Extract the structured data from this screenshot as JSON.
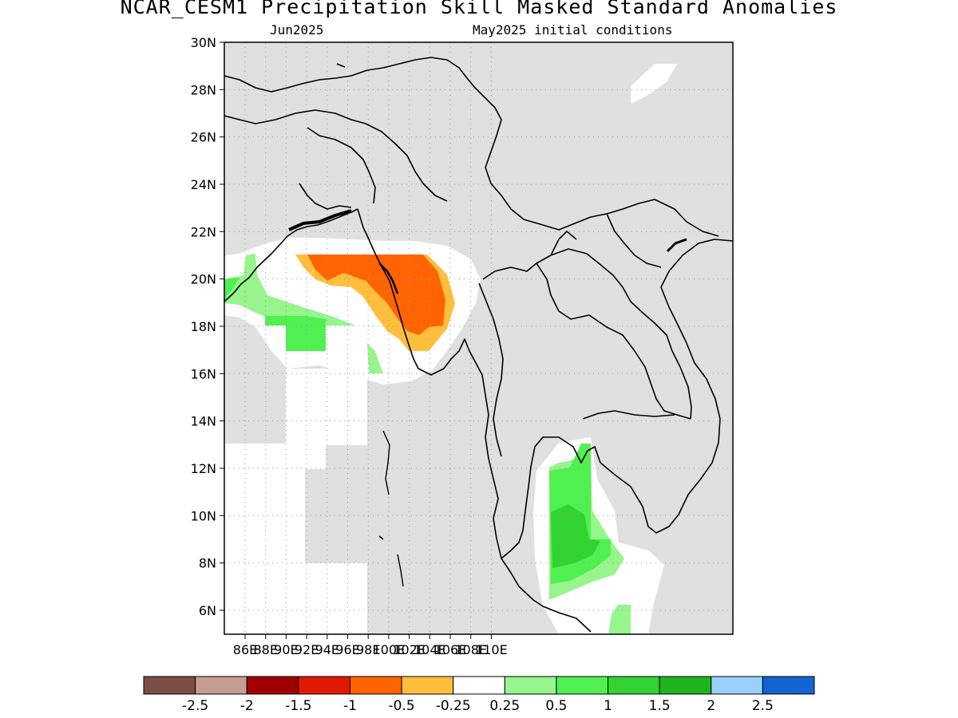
{
  "title": "NCAR_CESM1 Precipitation Skill Masked Standard Anomalies",
  "subtitle_left": "Jun2025",
  "subtitle_right": "May2025 initial conditions",
  "map": {
    "lat_labels": [
      "30N",
      "28N",
      "26N",
      "24N",
      "22N",
      "20N",
      "18N",
      "16N",
      "14N",
      "12N",
      "10N",
      "8N",
      "6N"
    ],
    "lon_labels": [
      "86E",
      "88E",
      "90E",
      "92E",
      "94E",
      "96E",
      "98E",
      "100E",
      "102E",
      "104E",
      "106E",
      "108E",
      "110E"
    ],
    "colors": {
      "masked": "#e0e0e0",
      "land_outline": "#000000"
    }
  },
  "legend": {
    "tick_labels": [
      "-2.5",
      "-2",
      "-1.5",
      "-1",
      "-0.5",
      "-0.25",
      "0.25",
      "0.5",
      "1",
      "1.5",
      "2",
      "2.5"
    ],
    "colors": [
      "#7a4e45",
      "#c79c90",
      "#a10000",
      "#e01a00",
      "#ff6400",
      "#ffbf3c",
      "#ffffff",
      "#96f58c",
      "#50f050",
      "#32d232",
      "#1eb41e",
      "#96d2fa",
      "#1464d2"
    ]
  }
}
